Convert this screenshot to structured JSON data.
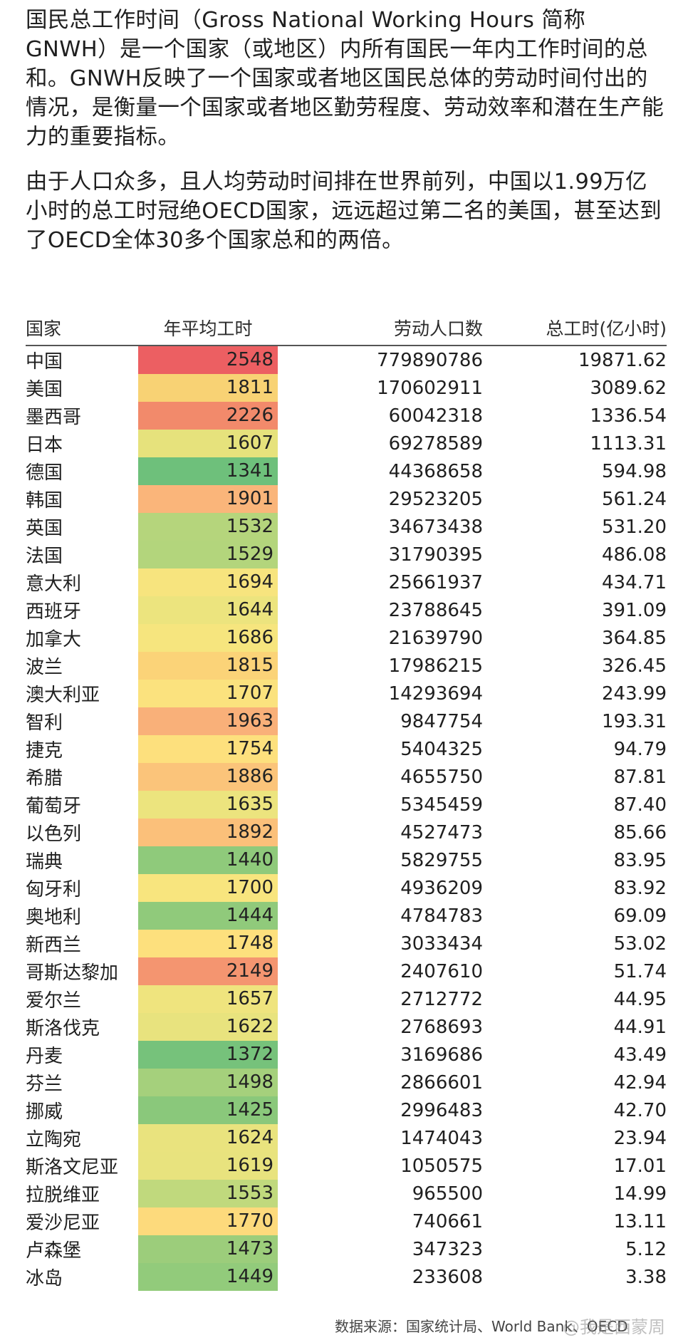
{
  "intro": {
    "p1": "国民总工作时间（Gross National Working Hours 简称GNWH）是一个国家（或地区）内所有国民一年内工作时间的总和。GNWH反映了一个国家或者地区国民总体的劳动时间付出的情况，是衡量一个国家或者地区勤劳程度、劳动效率和潜在生产能力的重要指标。",
    "p2": "由于人口众多，且人均劳动时间排在世界前列，中国以1.99万亿小时的总工时冠绝OECD国家，远远超过第二名的美国，甚至达到了OECD全体30多个国家总和的两倍。"
  },
  "table": {
    "headers": [
      "国家",
      "年平均工时",
      "劳动人口数",
      "总工时(亿小时)"
    ],
    "rows": [
      {
        "country": "中国",
        "hours": "2548",
        "labor": "779890786",
        "total": "19871.62",
        "color": "#ec5f62"
      },
      {
        "country": "美国",
        "hours": "1811",
        "labor": "170602911",
        "total": "3089.62",
        "color": "#f8d274"
      },
      {
        "country": "墨西哥",
        "hours": "2226",
        "labor": "60042318",
        "total": "1336.54",
        "color": "#f28a6b"
      },
      {
        "country": "日本",
        "hours": "1607",
        "labor": "69278589",
        "total": "1113.31",
        "color": "#e6e27c"
      },
      {
        "country": "德国",
        "hours": "1341",
        "labor": "44368658",
        "total": "594.98",
        "color": "#6ec07b"
      },
      {
        "country": "韩国",
        "hours": "1901",
        "labor": "29523205",
        "total": "561.24",
        "color": "#fab57a"
      },
      {
        "country": "英国",
        "hours": "1532",
        "labor": "34673438",
        "total": "531.20",
        "color": "#b5d57c"
      },
      {
        "country": "法国",
        "hours": "1529",
        "labor": "31790395",
        "total": "486.08",
        "color": "#b3d57c"
      },
      {
        "country": "意大利",
        "hours": "1694",
        "labor": "25661937",
        "total": "434.71",
        "color": "#f7e47e"
      },
      {
        "country": "西班牙",
        "hours": "1644",
        "labor": "23788645",
        "total": "391.09",
        "color": "#ece47e"
      },
      {
        "country": "加拿大",
        "hours": "1686",
        "labor": "21639790",
        "total": "364.85",
        "color": "#f6e57e"
      },
      {
        "country": "波兰",
        "hours": "1815",
        "labor": "17986215",
        "total": "326.45",
        "color": "#fbd378"
      },
      {
        "country": "澳大利亚",
        "hours": "1707",
        "labor": "14293694",
        "total": "243.99",
        "color": "#fbe27e"
      },
      {
        "country": "智利",
        "hours": "1963",
        "labor": "9847754",
        "total": "193.31",
        "color": "#f9b079"
      },
      {
        "country": "捷克",
        "hours": "1754",
        "labor": "5404325",
        "total": "94.79",
        "color": "#fde07d"
      },
      {
        "country": "希腊",
        "hours": "1886",
        "labor": "4655750",
        "total": "87.81",
        "color": "#fbc47a"
      },
      {
        "country": "葡萄牙",
        "hours": "1635",
        "labor": "5345459",
        "total": "87.40",
        "color": "#ece47e"
      },
      {
        "country": "以色列",
        "hours": "1892",
        "labor": "4527473",
        "total": "85.66",
        "color": "#fbc07a"
      },
      {
        "country": "瑞典",
        "hours": "1440",
        "labor": "5829755",
        "total": "83.95",
        "color": "#8fca7b"
      },
      {
        "country": "匈牙利",
        "hours": "1700",
        "labor": "4936209",
        "total": "83.92",
        "color": "#f8e57e"
      },
      {
        "country": "奥地利",
        "hours": "1444",
        "labor": "4784783",
        "total": "69.09",
        "color": "#90ca7b"
      },
      {
        "country": "新西兰",
        "hours": "1748",
        "labor": "3033434",
        "total": "53.02",
        "color": "#fde07d"
      },
      {
        "country": "哥斯达黎加",
        "hours": "2149",
        "labor": "2407610",
        "total": "51.74",
        "color": "#f49570"
      },
      {
        "country": "爱尔兰",
        "hours": "1657",
        "labor": "2712772",
        "total": "44.95",
        "color": "#efe47e"
      },
      {
        "country": "斯洛伐克",
        "hours": "1622",
        "labor": "2768693",
        "total": "44.91",
        "color": "#e8e37e"
      },
      {
        "country": "丹麦",
        "hours": "1372",
        "labor": "3169686",
        "total": "43.49",
        "color": "#76c27b"
      },
      {
        "country": "芬兰",
        "hours": "1498",
        "labor": "2866601",
        "total": "42.94",
        "color": "#a5d07c"
      },
      {
        "country": "挪威",
        "hours": "1425",
        "labor": "2996483",
        "total": "42.70",
        "color": "#8ac87b"
      },
      {
        "country": "立陶宛",
        "hours": "1624",
        "labor": "1474043",
        "total": "23.94",
        "color": "#e9e37e"
      },
      {
        "country": "斯洛文尼亚",
        "hours": "1619",
        "labor": "1050575",
        "total": "17.01",
        "color": "#e8e37e"
      },
      {
        "country": "拉脱维亚",
        "hours": "1553",
        "labor": "965500",
        "total": "14.99",
        "color": "#c0d97d"
      },
      {
        "country": "爱沙尼亚",
        "hours": "1770",
        "labor": "740661",
        "total": "13.11",
        "color": "#fdda7c"
      },
      {
        "country": "卢森堡",
        "hours": "1473",
        "labor": "347323",
        "total": "5.12",
        "color": "#9ccd7b"
      },
      {
        "country": "冰岛",
        "hours": "1449",
        "labor": "233608",
        "total": "3.38",
        "color": "#92cb7b"
      }
    ]
  },
  "source": "数据来源：国家统计局、World  Bank、OECD",
  "watermark": "@我是西蒙周"
}
